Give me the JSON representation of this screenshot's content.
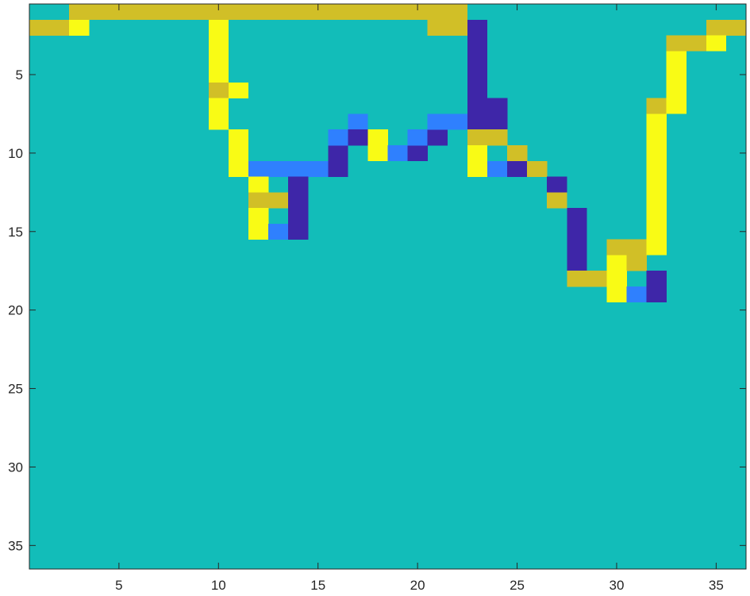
{
  "chart_data": {
    "type": "heatmap",
    "title": "",
    "xlabel": "",
    "ylabel": "",
    "n_rows": 36,
    "n_cols": 36,
    "y_reversed": true,
    "background_level": 3,
    "colors": {
      "1": "#3e26a8",
      "2": "#2f80fe",
      "3": "#12bdb9",
      "4": "#d1bf27",
      "5": "#f9fb15"
    },
    "xticks": [
      5,
      10,
      15,
      20,
      25,
      30,
      35
    ],
    "yticks": [
      5,
      10,
      15,
      20,
      25,
      30,
      35
    ],
    "xtick_labels": [
      "5",
      "10",
      "15",
      "20",
      "25",
      "30",
      "35"
    ],
    "ytick_labels": [
      "5",
      "10",
      "15",
      "20",
      "25",
      "30",
      "35"
    ],
    "cells": [
      [
        1,
        3,
        22,
        4
      ],
      [
        2,
        1,
        2,
        4
      ],
      [
        2,
        3,
        3,
        5
      ],
      [
        2,
        21,
        22,
        4
      ],
      [
        2,
        35,
        36,
        4
      ],
      [
        3,
        33,
        34,
        4
      ],
      [
        3,
        35,
        35,
        5
      ],
      [
        2,
        10,
        10,
        5
      ],
      [
        3,
        10,
        10,
        5
      ],
      [
        4,
        10,
        10,
        5
      ],
      [
        5,
        10,
        10,
        5
      ],
      [
        6,
        10,
        10,
        4
      ],
      [
        6,
        11,
        11,
        5
      ],
      [
        7,
        10,
        10,
        5
      ],
      [
        8,
        10,
        10,
        5
      ],
      [
        9,
        11,
        11,
        5
      ],
      [
        10,
        11,
        11,
        5
      ],
      [
        11,
        11,
        11,
        5
      ],
      [
        11,
        12,
        15,
        2
      ],
      [
        12,
        12,
        12,
        5
      ],
      [
        13,
        12,
        13,
        4
      ],
      [
        14,
        12,
        12,
        5
      ],
      [
        15,
        12,
        12,
        5
      ],
      [
        15,
        13,
        13,
        2
      ],
      [
        12,
        14,
        14,
        1
      ],
      [
        13,
        14,
        14,
        1
      ],
      [
        14,
        14,
        14,
        1
      ],
      [
        15,
        14,
        14,
        1
      ],
      [
        10,
        16,
        16,
        1
      ],
      [
        11,
        16,
        16,
        1
      ],
      [
        9,
        16,
        16,
        2
      ],
      [
        8,
        17,
        17,
        2
      ],
      [
        9,
        17,
        17,
        1
      ],
      [
        9,
        18,
        18,
        5
      ],
      [
        10,
        18,
        18,
        5
      ],
      [
        10,
        19,
        19,
        2
      ],
      [
        10,
        20,
        20,
        1
      ],
      [
        9,
        20,
        20,
        2
      ],
      [
        9,
        21,
        21,
        1
      ],
      [
        8,
        21,
        22,
        2
      ],
      [
        2,
        23,
        23,
        1
      ],
      [
        3,
        23,
        23,
        1
      ],
      [
        4,
        23,
        23,
        1
      ],
      [
        5,
        23,
        23,
        1
      ],
      [
        6,
        23,
        23,
        1
      ],
      [
        7,
        23,
        24,
        1
      ],
      [
        8,
        23,
        24,
        1
      ],
      [
        9,
        23,
        24,
        4
      ],
      [
        10,
        23,
        23,
        5
      ],
      [
        11,
        23,
        23,
        5
      ],
      [
        11,
        24,
        24,
        2
      ],
      [
        10,
        25,
        25,
        4
      ],
      [
        11,
        25,
        25,
        1
      ],
      [
        11,
        26,
        26,
        4
      ],
      [
        12,
        27,
        27,
        1
      ],
      [
        13,
        27,
        27,
        4
      ],
      [
        14,
        28,
        28,
        1
      ],
      [
        15,
        28,
        28,
        1
      ],
      [
        16,
        28,
        28,
        1
      ],
      [
        17,
        28,
        28,
        1
      ],
      [
        18,
        28,
        29,
        4
      ],
      [
        16,
        30,
        31,
        4
      ],
      [
        17,
        30,
        30,
        5
      ],
      [
        17,
        31,
        31,
        4
      ],
      [
        18,
        30,
        30,
        5
      ],
      [
        19,
        30,
        30,
        5
      ],
      [
        19,
        31,
        31,
        2
      ],
      [
        18,
        32,
        32,
        1
      ],
      [
        19,
        32,
        32,
        1
      ],
      [
        7,
        32,
        32,
        4
      ],
      [
        8,
        32,
        32,
        5
      ],
      [
        9,
        32,
        32,
        5
      ],
      [
        10,
        32,
        32,
        5
      ],
      [
        11,
        32,
        32,
        5
      ],
      [
        12,
        32,
        32,
        5
      ],
      [
        13,
        32,
        32,
        5
      ],
      [
        14,
        32,
        32,
        5
      ],
      [
        15,
        32,
        32,
        5
      ],
      [
        16,
        32,
        32,
        5
      ],
      [
        4,
        33,
        33,
        5
      ],
      [
        5,
        33,
        33,
        5
      ],
      [
        6,
        33,
        33,
        5
      ],
      [
        7,
        33,
        33,
        5
      ]
    ]
  }
}
